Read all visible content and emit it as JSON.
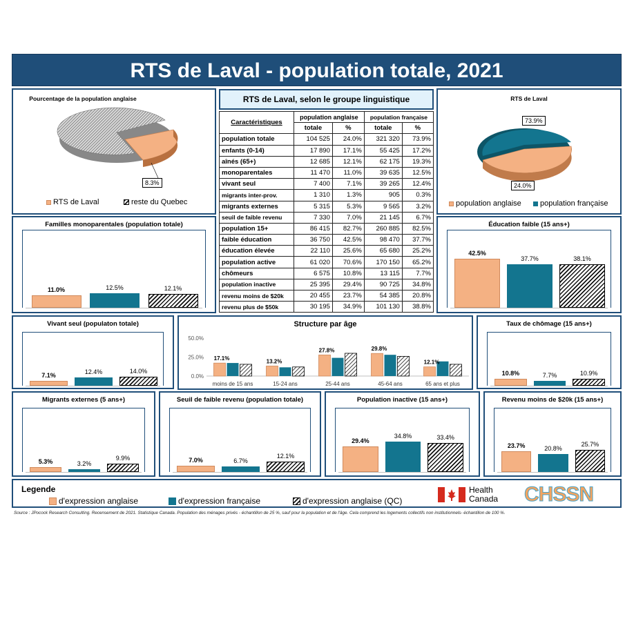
{
  "page_title": "RTS de Laval - population totale, 2021",
  "colors": {
    "english": "#f4b183",
    "french": "#13758f",
    "grey_pie": "#b0b0b0",
    "navy": "#1f4e79"
  },
  "pie_left": {
    "title": "Pourcentage de la population  anglaise",
    "slices": [
      {
        "name": "RTS de Laval",
        "value": 8.3
      },
      {
        "name": "reste du Quebec",
        "value": 91.7
      }
    ],
    "label": "8.3%",
    "legend": [
      "RTS de Laval",
      "reste du Quebec"
    ]
  },
  "pie_right": {
    "title": "RTS de Laval",
    "slices": [
      {
        "name": "population anglaise",
        "value": 24.0
      },
      {
        "name": "population française",
        "value": 73.9
      }
    ],
    "labels": [
      "24.0%",
      "73.9%"
    ],
    "legend": [
      "population anglaise",
      "population française"
    ]
  },
  "table": {
    "title": "RTS de Laval, selon le groupe linguistique",
    "header": {
      "col0": "Caractéristiques",
      "eng": "population anglaise",
      "fra": "population française",
      "totale": "totale",
      "pct": "%"
    },
    "rows": [
      [
        "population totale",
        "104 525",
        "24.0%",
        "321 320",
        "73.9%"
      ],
      [
        "enfants (0-14)",
        "17 890",
        "17.1%",
        "55 425",
        "17.2%"
      ],
      [
        "aînés (65+)",
        "12 685",
        "12.1%",
        "62 175",
        "19.3%"
      ],
      [
        "monoparentales",
        "11 470",
        "11.0%",
        "39 635",
        "12.5%"
      ],
      [
        "vivant seul",
        "7 400",
        "7.1%",
        "39 265",
        "12.4%"
      ],
      [
        "migrants inter-prov.",
        "1 310",
        "1.3%",
        "905",
        "0.3%"
      ],
      [
        "migrants externes",
        "5 315",
        "5.3%",
        "9 565",
        "3.2%"
      ],
      [
        "seuil de faible revenu",
        "7 330",
        "7.0%",
        "21 145",
        "6.7%"
      ],
      [
        "population 15+",
        "86 415",
        "82.7%",
        "260 885",
        "82.5%"
      ],
      [
        "faible éducation",
        "36 750",
        "42.5%",
        "98 470",
        "37.7%"
      ],
      [
        "éducation élevée",
        "22 110",
        "25.6%",
        "65 680",
        "25.2%"
      ],
      [
        "population active",
        "61 020",
        "70.6%",
        "170 150",
        "65.2%"
      ],
      [
        "chômeurs",
        "6 575",
        "10.8%",
        "13 115",
        "7.7%"
      ],
      [
        "population inactive",
        "25 395",
        "29.4%",
        "90 725",
        "34.8%"
      ],
      [
        "revenu moins de $20k",
        "20 455",
        "23.7%",
        "54 385",
        "20.8%"
      ],
      [
        "revenu plus de $50k",
        "30 195",
        "34.9%",
        "101 130",
        "38.8%"
      ]
    ]
  },
  "chart_data": [
    {
      "type": "bar",
      "title": "Familles monoparentales (population totale)",
      "values": [
        11.0,
        12.5,
        12.1
      ],
      "labels": [
        "11.0%",
        "12.5%",
        "12.1%"
      ]
    },
    {
      "type": "bar",
      "title": "Éducation faible (15 ans+)",
      "values": [
        42.5,
        37.7,
        38.1
      ],
      "labels": [
        "42.5%",
        "37.7%",
        "38.1%"
      ]
    },
    {
      "type": "bar",
      "title": "Vivant seul (populaton totale)",
      "values": [
        7.1,
        12.4,
        14.0
      ],
      "labels": [
        "7.1%",
        "12.4%",
        "14.0%"
      ]
    },
    {
      "type": "bar",
      "title": "Taux de chômage (15 ans+)",
      "values": [
        10.8,
        7.7,
        10.9
      ],
      "labels": [
        "10.8%",
        "7.7%",
        "10.9%"
      ]
    },
    {
      "type": "bar",
      "title": "Migrants externes (5 ans+)",
      "values": [
        5.3,
        3.2,
        9.9
      ],
      "labels": [
        "5.3%",
        "3.2%",
        "9.9%"
      ]
    },
    {
      "type": "bar",
      "title": "Seuil de faible revenu (population totale)",
      "values": [
        7.0,
        6.7,
        12.1
      ],
      "labels": [
        "7.0%",
        "6.7%",
        "12.1%"
      ]
    },
    {
      "type": "bar",
      "title": "Population inactive (15 ans+)",
      "values": [
        29.4,
        34.8,
        33.4
      ],
      "labels": [
        "29.4%",
        "34.8%",
        "33.4%"
      ]
    },
    {
      "type": "bar",
      "title": "Revenu moins de $20k (15 ans+)",
      "values": [
        23.7,
        20.8,
        25.7
      ],
      "labels": [
        "23.7%",
        "20.8%",
        "25.7%"
      ]
    },
    {
      "type": "bar",
      "title": "Structure par âge",
      "categories": [
        "moins de 15 ans",
        "15-24 ans",
        "25-44 ans",
        "45-64 ans",
        "65 ans et plus"
      ],
      "yticks": [
        "50.0%",
        "25.0%",
        "0.0%"
      ],
      "ylim": [
        0,
        50
      ],
      "series": [
        {
          "name": "d'expression anglaise",
          "values": [
            17.1,
            13.2,
            27.8,
            29.8,
            12.1
          ]
        },
        {
          "name": "d'expression française",
          "values": [
            17.2,
            11.5,
            24.0,
            28.0,
            19.3
          ]
        },
        {
          "name": "d'expression anglaise (QC)",
          "values": [
            15.5,
            12.0,
            30.0,
            26.0,
            15.5
          ]
        }
      ],
      "labels": [
        "17.1%",
        "13.2%",
        "27.8%",
        "29.8%",
        "12.1%"
      ]
    }
  ],
  "legend": {
    "title": "Legende",
    "items": [
      "d'expression anglaise",
      "d'expression française",
      "d'expression anglaise (QC)"
    ]
  },
  "logos": {
    "health_line1": "Health",
    "health_line2": "Canada",
    "chssn": "CHSSN"
  },
  "source": "Source : JPocock Research Consulting. Recensement de 2021. Statistique Canada. Population des ménages privés - échantillon de 25 %, sauf pour la population et de l'âge. Cela comprend les logements collectifs non institutionnels- échantillon de 100 %."
}
